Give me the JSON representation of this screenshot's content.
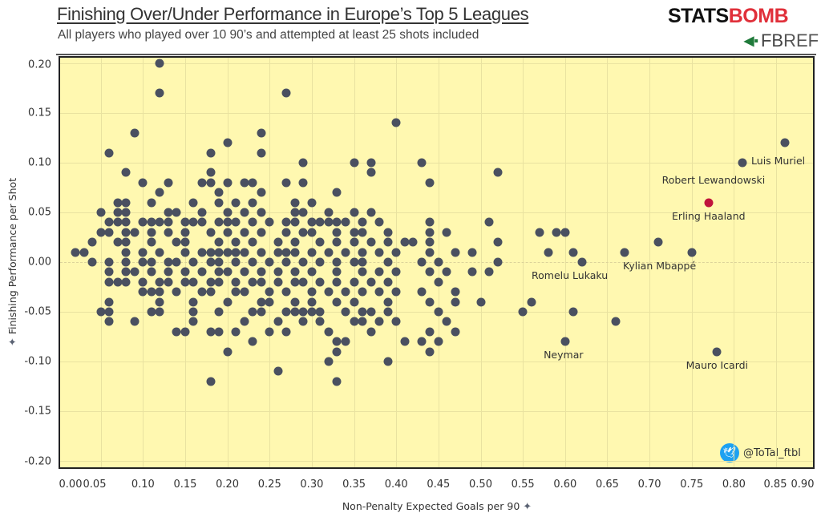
{
  "header": {
    "title": "Finishing Over/Under Performance in Europe’s Top 5 Leagues",
    "subtitle": "All players who played over 10 90’s and attempted at least 25 shots included",
    "logo_primary": "STATSBOMB",
    "logo_primary_a": "STATS",
    "logo_primary_b": "BOMB",
    "logo_secondary_a": "FB",
    "logo_secondary_b": "REF"
  },
  "credit": {
    "icon": "twitter-icon",
    "handle": "@ToTal_ftbl"
  },
  "colors": {
    "background": "#fff8b0",
    "point": "#4a5060",
    "highlight": "#c0143c",
    "grid": "#e9e2a0"
  },
  "chart_data": {
    "type": "scatter",
    "title": "Finishing Over/Under Performance in Europe’s Top 5 Leagues",
    "subtitle": "All players who played over 10 90’s and attempted at least 25 shots included",
    "xlabel": "Non-Penalty Expected Goals per 90",
    "ylabel": "Finishing Performance per Shot",
    "xlim": [
      0.0,
      0.9
    ],
    "ylim": [
      -0.2,
      0.2
    ],
    "grid": true,
    "xticks": [
      "0.00",
      "0.05",
      "0.10",
      "0.15",
      "0.20",
      "0.25",
      "0.30",
      "0.35",
      "0.40",
      "0.45",
      "0.50",
      "0.55",
      "0.60",
      "0.65",
      "0.70",
      "0.75",
      "0.80",
      "0.85",
      "0.90"
    ],
    "yticks": [
      "0.20",
      "0.15",
      "0.10",
      "0.05",
      "0.00",
      "-0.05",
      "-0.10",
      "-0.15",
      "-0.20"
    ],
    "labeled_points": [
      {
        "name": "Luis Muriel",
        "x": 0.86,
        "y": 0.12
      },
      {
        "name": "Robert Lewandowski",
        "x": 0.81,
        "y": 0.1
      },
      {
        "name": "Erling Haaland",
        "x": 0.77,
        "y": 0.06,
        "highlight": true
      },
      {
        "name": "Kylian Mbappé",
        "x": 0.75,
        "y": 0.01
      },
      {
        "name": "Romelu Lukaku",
        "x": 0.62,
        "y": 0.0
      },
      {
        "name": "Neymar",
        "x": 0.6,
        "y": -0.08
      },
      {
        "name": "Mauro Icardi",
        "x": 0.78,
        "y": -0.09
      }
    ],
    "points": [
      [
        0.12,
        0.2
      ],
      [
        0.12,
        0.17
      ],
      [
        0.27,
        0.17
      ],
      [
        0.4,
        0.14
      ],
      [
        0.09,
        0.13
      ],
      [
        0.24,
        0.13
      ],
      [
        0.2,
        0.12
      ],
      [
        0.86,
        0.12
      ],
      [
        0.06,
        0.11
      ],
      [
        0.18,
        0.11
      ],
      [
        0.24,
        0.11
      ],
      [
        0.29,
        0.1
      ],
      [
        0.35,
        0.1
      ],
      [
        0.37,
        0.1
      ],
      [
        0.43,
        0.1
      ],
      [
        0.81,
        0.1
      ],
      [
        0.08,
        0.09
      ],
      [
        0.18,
        0.09
      ],
      [
        0.37,
        0.09
      ],
      [
        0.52,
        0.09
      ],
      [
        0.1,
        0.08
      ],
      [
        0.13,
        0.08
      ],
      [
        0.17,
        0.08
      ],
      [
        0.18,
        0.08
      ],
      [
        0.2,
        0.08
      ],
      [
        0.22,
        0.08
      ],
      [
        0.23,
        0.08
      ],
      [
        0.27,
        0.08
      ],
      [
        0.29,
        0.08
      ],
      [
        0.44,
        0.08
      ],
      [
        0.12,
        0.07
      ],
      [
        0.19,
        0.07
      ],
      [
        0.24,
        0.07
      ],
      [
        0.33,
        0.07
      ],
      [
        0.07,
        0.06
      ],
      [
        0.08,
        0.06
      ],
      [
        0.11,
        0.06
      ],
      [
        0.16,
        0.06
      ],
      [
        0.19,
        0.06
      ],
      [
        0.21,
        0.06
      ],
      [
        0.23,
        0.06
      ],
      [
        0.28,
        0.06
      ],
      [
        0.3,
        0.06
      ],
      [
        0.77,
        0.06
      ],
      [
        0.05,
        0.05
      ],
      [
        0.07,
        0.05
      ],
      [
        0.08,
        0.05
      ],
      [
        0.13,
        0.05
      ],
      [
        0.14,
        0.05
      ],
      [
        0.17,
        0.05
      ],
      [
        0.2,
        0.05
      ],
      [
        0.22,
        0.05
      ],
      [
        0.24,
        0.05
      ],
      [
        0.28,
        0.05
      ],
      [
        0.29,
        0.05
      ],
      [
        0.32,
        0.05
      ],
      [
        0.35,
        0.05
      ],
      [
        0.37,
        0.05
      ],
      [
        0.06,
        0.04
      ],
      [
        0.07,
        0.04
      ],
      [
        0.08,
        0.04
      ],
      [
        0.1,
        0.04
      ],
      [
        0.11,
        0.04
      ],
      [
        0.12,
        0.04
      ],
      [
        0.13,
        0.04
      ],
      [
        0.15,
        0.04
      ],
      [
        0.16,
        0.04
      ],
      [
        0.17,
        0.04
      ],
      [
        0.19,
        0.04
      ],
      [
        0.2,
        0.04
      ],
      [
        0.21,
        0.04
      ],
      [
        0.23,
        0.04
      ],
      [
        0.25,
        0.04
      ],
      [
        0.27,
        0.04
      ],
      [
        0.28,
        0.04
      ],
      [
        0.3,
        0.04
      ],
      [
        0.31,
        0.04
      ],
      [
        0.32,
        0.04
      ],
      [
        0.33,
        0.04
      ],
      [
        0.34,
        0.04
      ],
      [
        0.36,
        0.04
      ],
      [
        0.38,
        0.04
      ],
      [
        0.44,
        0.04
      ],
      [
        0.51,
        0.04
      ],
      [
        0.05,
        0.03
      ],
      [
        0.06,
        0.03
      ],
      [
        0.08,
        0.03
      ],
      [
        0.09,
        0.03
      ],
      [
        0.11,
        0.03
      ],
      [
        0.13,
        0.03
      ],
      [
        0.15,
        0.03
      ],
      [
        0.18,
        0.03
      ],
      [
        0.2,
        0.03
      ],
      [
        0.22,
        0.03
      ],
      [
        0.24,
        0.03
      ],
      [
        0.27,
        0.03
      ],
      [
        0.29,
        0.03
      ],
      [
        0.3,
        0.03
      ],
      [
        0.33,
        0.03
      ],
      [
        0.35,
        0.03
      ],
      [
        0.36,
        0.03
      ],
      [
        0.39,
        0.03
      ],
      [
        0.44,
        0.03
      ],
      [
        0.46,
        0.03
      ],
      [
        0.57,
        0.03
      ],
      [
        0.59,
        0.03
      ],
      [
        0.6,
        0.03
      ],
      [
        0.04,
        0.02
      ],
      [
        0.07,
        0.02
      ],
      [
        0.08,
        0.02
      ],
      [
        0.11,
        0.02
      ],
      [
        0.14,
        0.02
      ],
      [
        0.15,
        0.02
      ],
      [
        0.19,
        0.02
      ],
      [
        0.21,
        0.02
      ],
      [
        0.23,
        0.02
      ],
      [
        0.26,
        0.02
      ],
      [
        0.28,
        0.02
      ],
      [
        0.31,
        0.02
      ],
      [
        0.33,
        0.02
      ],
      [
        0.35,
        0.02
      ],
      [
        0.37,
        0.02
      ],
      [
        0.39,
        0.02
      ],
      [
        0.41,
        0.02
      ],
      [
        0.42,
        0.02
      ],
      [
        0.44,
        0.02
      ],
      [
        0.52,
        0.02
      ],
      [
        0.71,
        0.02
      ],
      [
        0.02,
        0.01
      ],
      [
        0.03,
        0.01
      ],
      [
        0.08,
        0.01
      ],
      [
        0.1,
        0.01
      ],
      [
        0.12,
        0.01
      ],
      [
        0.15,
        0.01
      ],
      [
        0.17,
        0.01
      ],
      [
        0.18,
        0.01
      ],
      [
        0.19,
        0.01
      ],
      [
        0.2,
        0.01
      ],
      [
        0.21,
        0.01
      ],
      [
        0.22,
        0.01
      ],
      [
        0.24,
        0.01
      ],
      [
        0.26,
        0.01
      ],
      [
        0.27,
        0.01
      ],
      [
        0.28,
        0.01
      ],
      [
        0.3,
        0.01
      ],
      [
        0.32,
        0.01
      ],
      [
        0.34,
        0.01
      ],
      [
        0.36,
        0.01
      ],
      [
        0.38,
        0.01
      ],
      [
        0.4,
        0.01
      ],
      [
        0.44,
        0.01
      ],
      [
        0.47,
        0.01
      ],
      [
        0.49,
        0.01
      ],
      [
        0.58,
        0.01
      ],
      [
        0.61,
        0.01
      ],
      [
        0.67,
        0.01
      ],
      [
        0.75,
        0.01
      ],
      [
        0.04,
        0.0
      ],
      [
        0.06,
        0.0
      ],
      [
        0.08,
        0.0
      ],
      [
        0.1,
        0.0
      ],
      [
        0.11,
        0.0
      ],
      [
        0.13,
        0.0
      ],
      [
        0.14,
        0.0
      ],
      [
        0.16,
        0.0
      ],
      [
        0.18,
        0.0
      ],
      [
        0.19,
        0.0
      ],
      [
        0.21,
        0.0
      ],
      [
        0.23,
        0.0
      ],
      [
        0.25,
        0.0
      ],
      [
        0.27,
        0.0
      ],
      [
        0.29,
        0.0
      ],
      [
        0.31,
        0.0
      ],
      [
        0.33,
        0.0
      ],
      [
        0.35,
        0.0
      ],
      [
        0.36,
        0.0
      ],
      [
        0.39,
        0.0
      ],
      [
        0.43,
        0.0
      ],
      [
        0.45,
        0.0
      ],
      [
        0.52,
        0.0
      ],
      [
        0.62,
        0.0
      ],
      [
        0.06,
        -0.01
      ],
      [
        0.08,
        -0.01
      ],
      [
        0.09,
        -0.01
      ],
      [
        0.11,
        -0.01
      ],
      [
        0.13,
        -0.01
      ],
      [
        0.15,
        -0.01
      ],
      [
        0.17,
        -0.01
      ],
      [
        0.19,
        -0.01
      ],
      [
        0.2,
        -0.01
      ],
      [
        0.22,
        -0.01
      ],
      [
        0.24,
        -0.01
      ],
      [
        0.26,
        -0.01
      ],
      [
        0.28,
        -0.01
      ],
      [
        0.3,
        -0.01
      ],
      [
        0.33,
        -0.01
      ],
      [
        0.36,
        -0.01
      ],
      [
        0.38,
        -0.01
      ],
      [
        0.4,
        -0.01
      ],
      [
        0.44,
        -0.01
      ],
      [
        0.46,
        -0.01
      ],
      [
        0.49,
        -0.01
      ],
      [
        0.51,
        -0.01
      ],
      [
        0.06,
        -0.02
      ],
      [
        0.07,
        -0.02
      ],
      [
        0.08,
        -0.02
      ],
      [
        0.1,
        -0.02
      ],
      [
        0.12,
        -0.02
      ],
      [
        0.13,
        -0.02
      ],
      [
        0.15,
        -0.02
      ],
      [
        0.16,
        -0.02
      ],
      [
        0.18,
        -0.02
      ],
      [
        0.19,
        -0.02
      ],
      [
        0.21,
        -0.02
      ],
      [
        0.23,
        -0.02
      ],
      [
        0.24,
        -0.02
      ],
      [
        0.26,
        -0.02
      ],
      [
        0.28,
        -0.02
      ],
      [
        0.29,
        -0.02
      ],
      [
        0.31,
        -0.02
      ],
      [
        0.33,
        -0.02
      ],
      [
        0.35,
        -0.02
      ],
      [
        0.37,
        -0.02
      ],
      [
        0.39,
        -0.02
      ],
      [
        0.45,
        -0.02
      ],
      [
        0.1,
        -0.03
      ],
      [
        0.11,
        -0.03
      ],
      [
        0.12,
        -0.03
      ],
      [
        0.14,
        -0.03
      ],
      [
        0.17,
        -0.03
      ],
      [
        0.18,
        -0.03
      ],
      [
        0.21,
        -0.03
      ],
      [
        0.22,
        -0.03
      ],
      [
        0.25,
        -0.03
      ],
      [
        0.27,
        -0.03
      ],
      [
        0.3,
        -0.03
      ],
      [
        0.32,
        -0.03
      ],
      [
        0.34,
        -0.03
      ],
      [
        0.36,
        -0.03
      ],
      [
        0.38,
        -0.03
      ],
      [
        0.4,
        -0.03
      ],
      [
        0.43,
        -0.03
      ],
      [
        0.47,
        -0.03
      ],
      [
        0.06,
        -0.04
      ],
      [
        0.12,
        -0.04
      ],
      [
        0.16,
        -0.04
      ],
      [
        0.2,
        -0.04
      ],
      [
        0.24,
        -0.04
      ],
      [
        0.25,
        -0.04
      ],
      [
        0.28,
        -0.04
      ],
      [
        0.3,
        -0.04
      ],
      [
        0.33,
        -0.04
      ],
      [
        0.35,
        -0.04
      ],
      [
        0.39,
        -0.04
      ],
      [
        0.44,
        -0.04
      ],
      [
        0.47,
        -0.04
      ],
      [
        0.5,
        -0.04
      ],
      [
        0.56,
        -0.04
      ],
      [
        0.05,
        -0.05
      ],
      [
        0.06,
        -0.05
      ],
      [
        0.11,
        -0.05
      ],
      [
        0.12,
        -0.05
      ],
      [
        0.16,
        -0.05
      ],
      [
        0.19,
        -0.05
      ],
      [
        0.23,
        -0.05
      ],
      [
        0.24,
        -0.05
      ],
      [
        0.27,
        -0.05
      ],
      [
        0.28,
        -0.05
      ],
      [
        0.29,
        -0.05
      ],
      [
        0.3,
        -0.05
      ],
      [
        0.31,
        -0.05
      ],
      [
        0.34,
        -0.05
      ],
      [
        0.36,
        -0.05
      ],
      [
        0.37,
        -0.05
      ],
      [
        0.39,
        -0.05
      ],
      [
        0.45,
        -0.05
      ],
      [
        0.55,
        -0.05
      ],
      [
        0.61,
        -0.05
      ],
      [
        0.06,
        -0.06
      ],
      [
        0.09,
        -0.06
      ],
      [
        0.16,
        -0.06
      ],
      [
        0.22,
        -0.06
      ],
      [
        0.26,
        -0.06
      ],
      [
        0.29,
        -0.06
      ],
      [
        0.31,
        -0.06
      ],
      [
        0.35,
        -0.06
      ],
      [
        0.36,
        -0.06
      ],
      [
        0.38,
        -0.06
      ],
      [
        0.4,
        -0.06
      ],
      [
        0.46,
        -0.06
      ],
      [
        0.66,
        -0.06
      ],
      [
        0.14,
        -0.07
      ],
      [
        0.15,
        -0.07
      ],
      [
        0.18,
        -0.07
      ],
      [
        0.19,
        -0.07
      ],
      [
        0.21,
        -0.07
      ],
      [
        0.25,
        -0.07
      ],
      [
        0.27,
        -0.07
      ],
      [
        0.32,
        -0.07
      ],
      [
        0.37,
        -0.07
      ],
      [
        0.44,
        -0.07
      ],
      [
        0.47,
        -0.07
      ],
      [
        0.23,
        -0.08
      ],
      [
        0.33,
        -0.08
      ],
      [
        0.34,
        -0.08
      ],
      [
        0.41,
        -0.08
      ],
      [
        0.43,
        -0.08
      ],
      [
        0.45,
        -0.08
      ],
      [
        0.6,
        -0.08
      ],
      [
        0.2,
        -0.09
      ],
      [
        0.33,
        -0.09
      ],
      [
        0.44,
        -0.09
      ],
      [
        0.78,
        -0.09
      ],
      [
        0.32,
        -0.1
      ],
      [
        0.39,
        -0.1
      ],
      [
        0.26,
        -0.11
      ],
      [
        0.18,
        -0.12
      ],
      [
        0.33,
        -0.12
      ]
    ]
  }
}
